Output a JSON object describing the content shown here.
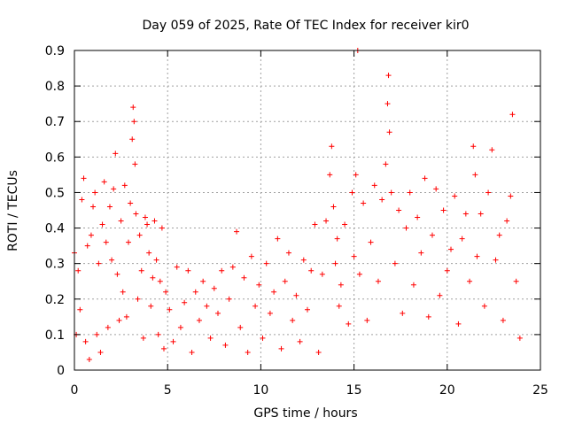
{
  "chart_data": {
    "type": "scatter",
    "title": "Day 059 of 2025, Rate Of TEC Index for receiver kir0",
    "xlabel": "GPS time / hours",
    "ylabel": "ROTI / TECUs",
    "xlim": [
      0,
      25
    ],
    "ylim": [
      0,
      0.9
    ],
    "xticks": [
      0,
      5,
      10,
      15,
      20,
      25
    ],
    "yticks": [
      0,
      0.1,
      0.2,
      0.3,
      0.4,
      0.5,
      0.6,
      0.7,
      0.8,
      0.9
    ],
    "xtick_labels": [
      "0",
      "5",
      "10",
      "15",
      "20",
      "25"
    ],
    "ytick_labels": [
      "0",
      "0.1",
      "0.2",
      "0.3",
      "0.4",
      "0.5",
      "0.6",
      "0.7",
      "0.8",
      "0.9"
    ],
    "grid": true,
    "marker": "+",
    "color": "#ff0000",
    "series": [
      {
        "name": "ROTI",
        "points": [
          [
            0.0,
            0.33
          ],
          [
            0.1,
            0.1
          ],
          [
            0.2,
            0.28
          ],
          [
            0.3,
            0.17
          ],
          [
            0.4,
            0.48
          ],
          [
            0.5,
            0.54
          ],
          [
            0.6,
            0.08
          ],
          [
            0.7,
            0.35
          ],
          [
            0.8,
            0.03
          ],
          [
            0.9,
            0.38
          ],
          [
            1.0,
            0.46
          ],
          [
            1.1,
            0.5
          ],
          [
            1.2,
            0.1
          ],
          [
            1.3,
            0.3
          ],
          [
            1.4,
            0.05
          ],
          [
            1.5,
            0.41
          ],
          [
            1.6,
            0.53
          ],
          [
            1.7,
            0.36
          ],
          [
            1.8,
            0.12
          ],
          [
            1.9,
            0.46
          ],
          [
            2.0,
            0.31
          ],
          [
            2.1,
            0.51
          ],
          [
            2.2,
            0.61
          ],
          [
            2.3,
            0.27
          ],
          [
            2.4,
            0.14
          ],
          [
            2.5,
            0.42
          ],
          [
            2.6,
            0.22
          ],
          [
            2.7,
            0.52
          ],
          [
            2.8,
            0.15
          ],
          [
            2.9,
            0.36
          ],
          [
            3.0,
            0.47
          ],
          [
            3.1,
            0.65
          ],
          [
            3.15,
            0.74
          ],
          [
            3.2,
            0.7
          ],
          [
            3.25,
            0.58
          ],
          [
            3.3,
            0.44
          ],
          [
            3.4,
            0.2
          ],
          [
            3.5,
            0.38
          ],
          [
            3.6,
            0.28
          ],
          [
            3.7,
            0.09
          ],
          [
            3.8,
            0.43
          ],
          [
            3.9,
            0.41
          ],
          [
            4.0,
            0.33
          ],
          [
            4.1,
            0.18
          ],
          [
            4.2,
            0.26
          ],
          [
            4.3,
            0.42
          ],
          [
            4.4,
            0.31
          ],
          [
            4.5,
            0.1
          ],
          [
            4.6,
            0.25
          ],
          [
            4.7,
            0.4
          ],
          [
            4.8,
            0.06
          ],
          [
            4.9,
            0.22
          ],
          [
            5.1,
            0.17
          ],
          [
            5.3,
            0.08
          ],
          [
            5.5,
            0.29
          ],
          [
            5.7,
            0.12
          ],
          [
            5.9,
            0.19
          ],
          [
            6.1,
            0.28
          ],
          [
            6.3,
            0.05
          ],
          [
            6.5,
            0.22
          ],
          [
            6.7,
            0.14
          ],
          [
            6.9,
            0.25
          ],
          [
            7.1,
            0.18
          ],
          [
            7.3,
            0.09
          ],
          [
            7.5,
            0.23
          ],
          [
            7.7,
            0.16
          ],
          [
            7.9,
            0.28
          ],
          [
            8.1,
            0.07
          ],
          [
            8.3,
            0.2
          ],
          [
            8.5,
            0.29
          ],
          [
            8.7,
            0.39
          ],
          [
            8.9,
            0.12
          ],
          [
            9.1,
            0.26
          ],
          [
            9.3,
            0.05
          ],
          [
            9.5,
            0.32
          ],
          [
            9.7,
            0.18
          ],
          [
            9.9,
            0.24
          ],
          [
            10.1,
            0.09
          ],
          [
            10.3,
            0.3
          ],
          [
            10.5,
            0.16
          ],
          [
            10.7,
            0.22
          ],
          [
            10.9,
            0.37
          ],
          [
            11.1,
            0.06
          ],
          [
            11.3,
            0.25
          ],
          [
            11.5,
            0.33
          ],
          [
            11.7,
            0.14
          ],
          [
            11.9,
            0.21
          ],
          [
            12.1,
            0.08
          ],
          [
            12.3,
            0.31
          ],
          [
            12.5,
            0.17
          ],
          [
            12.7,
            0.28
          ],
          [
            12.9,
            0.41
          ],
          [
            13.1,
            0.05
          ],
          [
            13.3,
            0.27
          ],
          [
            13.5,
            0.42
          ],
          [
            13.7,
            0.55
          ],
          [
            13.8,
            0.63
          ],
          [
            13.9,
            0.46
          ],
          [
            14.0,
            0.3
          ],
          [
            14.1,
            0.37
          ],
          [
            14.2,
            0.18
          ],
          [
            14.3,
            0.24
          ],
          [
            14.5,
            0.41
          ],
          [
            14.7,
            0.13
          ],
          [
            14.9,
            0.5
          ],
          [
            15.0,
            0.32
          ],
          [
            15.1,
            0.55
          ],
          [
            15.2,
            0.9
          ],
          [
            15.3,
            0.27
          ],
          [
            15.5,
            0.47
          ],
          [
            15.7,
            0.14
          ],
          [
            15.9,
            0.36
          ],
          [
            16.1,
            0.52
          ],
          [
            16.3,
            0.25
          ],
          [
            16.5,
            0.48
          ],
          [
            16.7,
            0.58
          ],
          [
            16.8,
            0.75
          ],
          [
            16.85,
            0.83
          ],
          [
            16.9,
            0.67
          ],
          [
            17.0,
            0.5
          ],
          [
            17.2,
            0.3
          ],
          [
            17.4,
            0.45
          ],
          [
            17.6,
            0.16
          ],
          [
            17.8,
            0.4
          ],
          [
            18.0,
            0.5
          ],
          [
            18.2,
            0.24
          ],
          [
            18.4,
            0.43
          ],
          [
            18.6,
            0.33
          ],
          [
            18.8,
            0.54
          ],
          [
            19.0,
            0.15
          ],
          [
            19.2,
            0.38
          ],
          [
            19.4,
            0.51
          ],
          [
            19.6,
            0.21
          ],
          [
            19.8,
            0.45
          ],
          [
            20.0,
            0.28
          ],
          [
            20.2,
            0.34
          ],
          [
            20.4,
            0.49
          ],
          [
            20.6,
            0.13
          ],
          [
            20.8,
            0.37
          ],
          [
            21.0,
            0.44
          ],
          [
            21.2,
            0.25
          ],
          [
            21.4,
            0.63
          ],
          [
            21.5,
            0.55
          ],
          [
            21.6,
            0.32
          ],
          [
            21.8,
            0.44
          ],
          [
            22.0,
            0.18
          ],
          [
            22.2,
            0.5
          ],
          [
            22.4,
            0.62
          ],
          [
            22.6,
            0.31
          ],
          [
            22.8,
            0.38
          ],
          [
            23.0,
            0.14
          ],
          [
            23.2,
            0.42
          ],
          [
            23.4,
            0.49
          ],
          [
            23.5,
            0.72
          ],
          [
            23.7,
            0.25
          ],
          [
            23.9,
            0.09
          ]
        ]
      }
    ]
  }
}
